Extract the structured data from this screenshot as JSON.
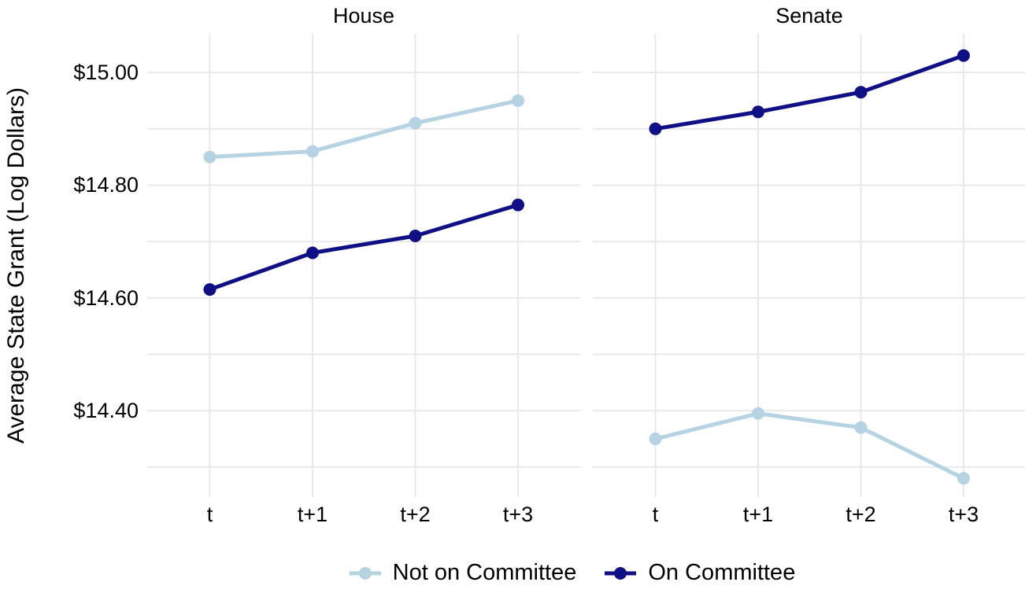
{
  "chart_data": {
    "type": "line",
    "title": "",
    "xlabel": "",
    "ylabel": "Average State Grant (Log Dollars)",
    "categories": [
      "t",
      "t+1",
      "t+2",
      "t+3"
    ],
    "facets": [
      {
        "title": "House",
        "series": [
          {
            "name": "Not on Committee",
            "values": [
              14.85,
              14.86,
              14.91,
              14.95
            ]
          },
          {
            "name": "On Committee",
            "values": [
              14.615,
              14.68,
              14.71,
              14.765
            ]
          }
        ]
      },
      {
        "title": "Senate",
        "series": [
          {
            "name": "Not on Committee",
            "values": [
              14.35,
              14.395,
              14.37,
              14.28
            ]
          },
          {
            "name": "On Committee",
            "values": [
              14.9,
              14.93,
              14.965,
              15.03
            ]
          }
        ]
      }
    ],
    "y_ticks": [
      {
        "label": "$15.00",
        "value": 15.0
      },
      {
        "label": "$14.80",
        "value": 14.8
      },
      {
        "label": "$14.60",
        "value": 14.6
      },
      {
        "label": "$14.40",
        "value": 14.4
      }
    ],
    "ylim": [
      14.25,
      15.07
    ],
    "grid_values": [
      14.3,
      14.4,
      14.5,
      14.6,
      14.7,
      14.8,
      14.9,
      15.0
    ],
    "grid_on": true,
    "grid_color": "#e9e9e9",
    "legend": {
      "position": "bottom",
      "entries": [
        {
          "label": "Not on Committee",
          "color": "#b5d3e2"
        },
        {
          "label": "On Committee",
          "color": "#101086"
        }
      ]
    }
  }
}
